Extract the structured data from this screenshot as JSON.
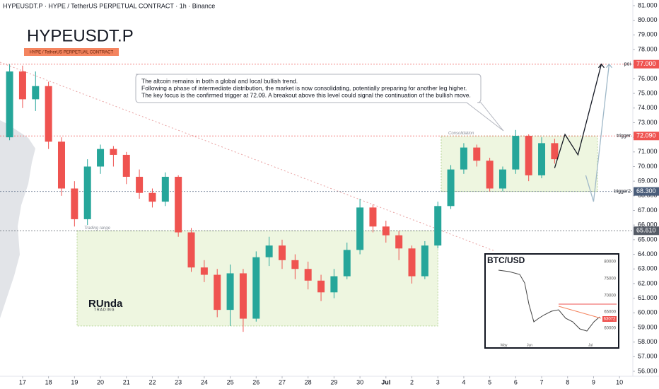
{
  "chart_data": {
    "type": "candlestick",
    "header": "HYPEUSDT.P · HYPE / TetherUS PERPETUAL CONTRACT · 1h · Binance",
    "title": "HYPEUSDT.P",
    "subtitle": "HYPE / TetherUS PERPETUAL CONTRACT",
    "up_color": "#26a69a",
    "down_color": "#ef5350",
    "xlim": [
      -0.87,
      23.5
    ],
    "xticks": [
      {
        "value": 0,
        "label": "17"
      },
      {
        "value": 1,
        "label": "18"
      },
      {
        "value": 2,
        "label": "19"
      },
      {
        "value": 3,
        "label": "20"
      },
      {
        "value": 4,
        "label": "21"
      },
      {
        "value": 5,
        "label": "22"
      },
      {
        "value": 6,
        "label": "23"
      },
      {
        "value": 7,
        "label": "24"
      },
      {
        "value": 8,
        "label": "25"
      },
      {
        "value": 9,
        "label": "26"
      },
      {
        "value": 10,
        "label": "27"
      },
      {
        "value": 11,
        "label": "28"
      },
      {
        "value": 12,
        "label": "29"
      },
      {
        "value": 13,
        "label": "30"
      },
      {
        "value": 14,
        "label": "Jul"
      },
      {
        "value": 15,
        "label": "2"
      },
      {
        "value": 16,
        "label": "3"
      },
      {
        "value": 17,
        "label": "4"
      },
      {
        "value": 18,
        "label": "5"
      },
      {
        "value": 19,
        "label": "6"
      },
      {
        "value": 20,
        "label": "7"
      },
      {
        "value": 21,
        "label": "8"
      },
      {
        "value": 22,
        "label": "9"
      },
      {
        "value": 23,
        "label": "10"
      }
    ],
    "ylim": [
      56,
      81
    ],
    "yticks": [
      {
        "value": 56,
        "label": "56.000"
      },
      {
        "value": 57,
        "label": "57.000"
      },
      {
        "value": 58,
        "label": "58.000"
      },
      {
        "value": 59,
        "label": "59.000"
      },
      {
        "value": 60,
        "label": "60.000"
      },
      {
        "value": 61,
        "label": "61.000"
      },
      {
        "value": 62,
        "label": "62.000"
      },
      {
        "value": 63,
        "label": "63.000"
      },
      {
        "value": 64,
        "label": "64.000"
      },
      {
        "value": 65,
        "label": "65.000"
      },
      {
        "value": 66,
        "label": "66.000"
      },
      {
        "value": 67,
        "label": "67.000"
      },
      {
        "value": 68,
        "label": "68.000"
      },
      {
        "value": 69,
        "label": "69.000"
      },
      {
        "value": 70,
        "label": "70.000"
      },
      {
        "value": 71,
        "label": "71.000"
      },
      {
        "value": 72,
        "label": "72.000"
      },
      {
        "value": 73,
        "label": "73.000"
      },
      {
        "value": 74,
        "label": "74.000"
      },
      {
        "value": 75,
        "label": "75.000"
      },
      {
        "value": 76,
        "label": "76.000"
      },
      {
        "value": 77,
        "label": "77.000"
      },
      {
        "value": 78,
        "label": "78.000"
      },
      {
        "value": 79,
        "label": "79.000"
      },
      {
        "value": 80,
        "label": "80.000"
      },
      {
        "value": 81,
        "label": "81.000"
      }
    ],
    "x": [
      -0.5,
      0,
      0.5,
      1,
      1.5,
      2,
      2.5,
      3,
      3.5,
      4,
      4.5,
      5,
      5.5,
      6,
      6.5,
      7,
      7.5,
      8,
      8.5,
      9,
      9.5,
      10,
      10.5,
      11,
      11.5,
      12,
      12.5,
      13,
      13.5,
      14,
      14.5,
      15,
      15.5,
      16,
      16.5,
      17,
      17.5,
      18,
      18.5,
      19,
      19.5,
      20,
      20.5
    ],
    "open": [
      72,
      76.5,
      74.6,
      75.5,
      71.7,
      68.5,
      66.4,
      70,
      71.2,
      70.8,
      69.3,
      68.2,
      67.6,
      69.3,
      65.5,
      63.1,
      62.6,
      60.2,
      62.7,
      59.6,
      63.8,
      64.6,
      63.6,
      63,
      62.2,
      61.4,
      62.5,
      64.3,
      67.2,
      65.9,
      65.3,
      64.4,
      62.5,
      64.6,
      67.3,
      69.8,
      71.3,
      70.4,
      68.5,
      69.8,
      72.1,
      69.4,
      71.6
    ],
    "high": [
      77,
      76.9,
      76.5,
      75.8,
      72,
      69,
      70.5,
      71.5,
      71.4,
      71,
      69.8,
      68.5,
      69.6,
      69.4,
      65.8,
      63.6,
      63,
      63.3,
      63,
      64.2,
      65.2,
      65,
      64,
      63.5,
      62.6,
      63,
      64.8,
      67.8,
      67.4,
      66.3,
      65.6,
      64.6,
      64.9,
      67.6,
      70.1,
      71.6,
      71.5,
      70.6,
      70,
      72.5,
      72.2,
      72,
      71.9
    ],
    "low": [
      71.8,
      74,
      73.8,
      71.2,
      68,
      65.9,
      66,
      69.5,
      70,
      68.8,
      67.8,
      67.2,
      67.3,
      65.2,
      62.8,
      62.1,
      59.7,
      59.1,
      58.7,
      59.4,
      63.2,
      63,
      62.3,
      61.6,
      60.8,
      61,
      62.3,
      64,
      65.5,
      64.8,
      63.6,
      62,
      62.3,
      64.4,
      67.1,
      69.5,
      70,
      68.3,
      68.3,
      69.5,
      69,
      69.2,
      70.2
    ],
    "close": [
      76.5,
      74.6,
      75.5,
      71.7,
      68.5,
      66.4,
      70,
      71.2,
      70.8,
      69.3,
      68.2,
      67.6,
      69.3,
      65.5,
      63.1,
      62.6,
      60.2,
      62.7,
      59.6,
      63.8,
      64.6,
      63.6,
      63,
      62.2,
      61.4,
      62.5,
      64.3,
      67.2,
      65.9,
      65.3,
      64.4,
      62.5,
      64.6,
      67.3,
      69.8,
      71.3,
      70.4,
      68.5,
      69.8,
      72.1,
      69.4,
      71.6,
      70.5
    ],
    "levels": [
      {
        "value": 77,
        "label": "77.000",
        "tag": "poi",
        "color": "#ef5350"
      },
      {
        "value": 72.09,
        "label": "72.090",
        "tag": "trigger",
        "color": "#ef5350"
      },
      {
        "value": 68.3,
        "label": "68.300",
        "tag": "trigger2",
        "color": "#4a5d7a"
      },
      {
        "value": 65.61,
        "label": "65.610",
        "color": "#555b66"
      }
    ],
    "zones": [
      {
        "label": "Trading range",
        "x": [
          2.1,
          16
        ],
        "y": [
          59.1,
          65.6
        ]
      },
      {
        "label": "Consolidation",
        "x": [
          16.13,
          22.15
        ],
        "y": [
          68.3,
          72.09
        ]
      }
    ],
    "arrows": [
      {
        "x": [
          20.5,
          20.9,
          21.4,
          22.3
        ],
        "y": [
          69.9,
          72.2,
          70.8,
          77
        ],
        "color": "#131722"
      },
      {
        "x": [
          21.7,
          22,
          22.6
        ],
        "y": [
          69.4,
          67.6,
          77
        ],
        "color": "#9fb8c8"
      }
    ],
    "annotation": {
      "lines": [
        "The altcoin remains in both a global and local bullish trend.",
        "Following a phase of intermediate distribution, the market is now consolidating, potentially preparing for another leg higher.",
        "The key focus is the confirmed trigger at 72.09. A breakout above this level could signal the continuation of the bullish move."
      ]
    },
    "logo": {
      "name": "RUnda",
      "sub": "TRADING"
    },
    "inset": {
      "title": "BTC/USD",
      "ylabels": [
        "80000",
        "75000",
        "70000",
        "65000",
        "60000"
      ],
      "price": "63072",
      "xlabels": [
        "May",
        "Jun",
        "Jul"
      ]
    }
  }
}
